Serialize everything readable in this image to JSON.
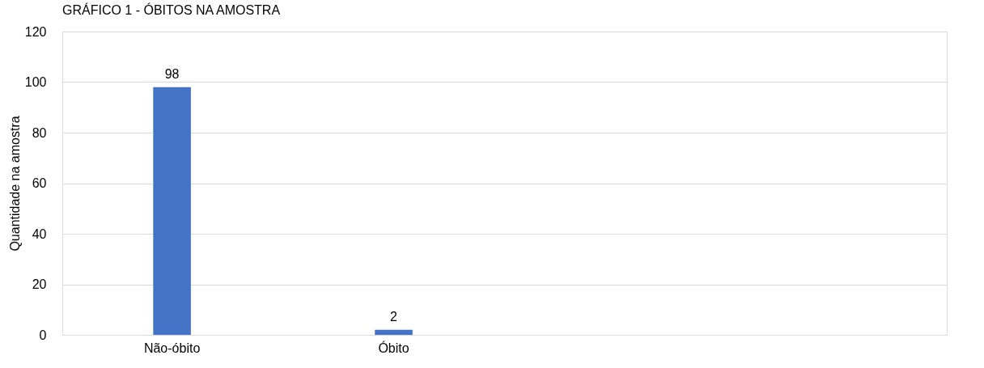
{
  "chart_data": {
    "type": "bar",
    "title": "GRÁFICO 1 - ÓBITOS NA AMOSTRA",
    "ylabel": "Quantidade na amostra",
    "categories": [
      "Não-óbito",
      "Óbito",
      null,
      null
    ],
    "values": [
      98,
      2,
      null,
      null
    ],
    "color": "#4472c4",
    "ylim": [
      0,
      120
    ],
    "yticks": [
      0,
      20,
      40,
      60,
      80,
      100,
      120
    ],
    "grid": "y",
    "data_labels": true
  }
}
